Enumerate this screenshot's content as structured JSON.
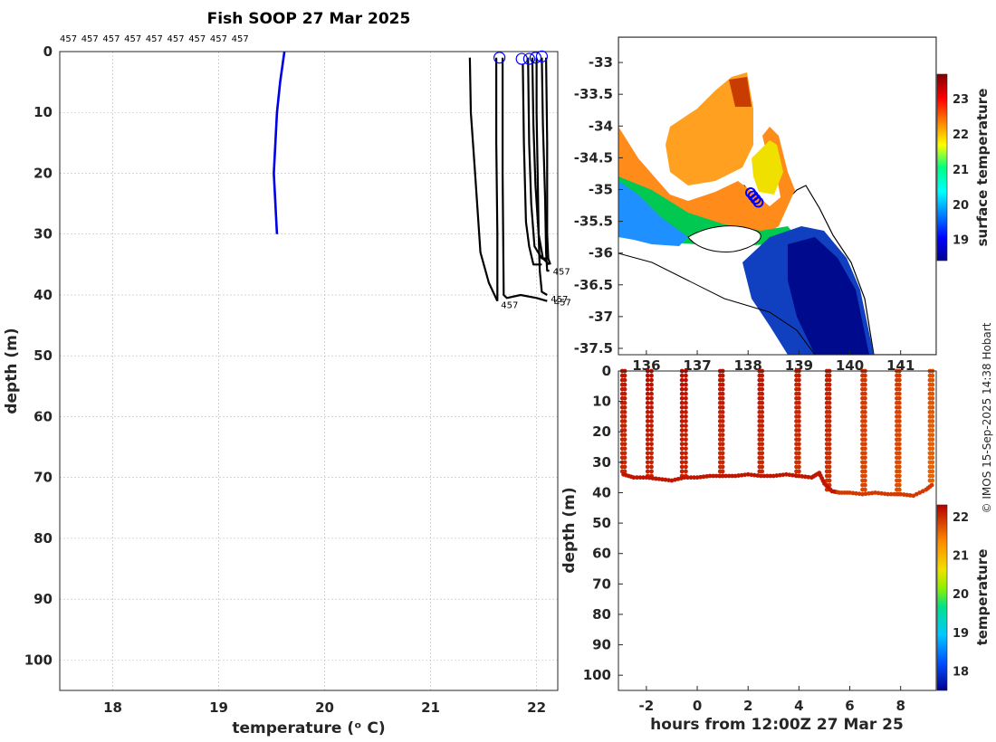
{
  "colors": {
    "text": "#262626",
    "mean_profile": "#0000e6",
    "cast_profiles": "#000000",
    "surface_markers": "#0000ff"
  },
  "chart_data": [
    {
      "type": "line",
      "title": "Fish SOOP 27 Mar 2025",
      "xlabel": "temperature (ᵒ C)",
      "ylabel": "depth (m)",
      "xlim": [
        17.5,
        22.2
      ],
      "ylim": [
        105,
        0
      ],
      "x_ticks": [
        "18",
        "19",
        "20",
        "21",
        "22"
      ],
      "y_ticks": [
        "0",
        "10",
        "20",
        "30",
        "40",
        "50",
        "60",
        "70",
        "80",
        "90",
        "100"
      ],
      "grid": true,
      "top_labels": [
        "457",
        "457",
        "457",
        "457",
        "457",
        "457",
        "457",
        "457",
        "457"
      ],
      "end_labels": [
        "457",
        "457",
        "457",
        "457"
      ],
      "series": [
        {
          "role": "climatology",
          "color": "#0000e6",
          "points": [
            [
              19.62,
              0
            ],
            [
              19.58,
              5
            ],
            [
              19.55,
              10
            ],
            [
              19.52,
              20
            ],
            [
              19.55,
              30
            ]
          ]
        },
        {
          "role": "cast",
          "points": [
            [
              21.37,
              1
            ],
            [
              21.38,
              10
            ],
            [
              21.42,
              20
            ],
            [
              21.47,
              33
            ],
            [
              21.55,
              38
            ],
            [
              21.63,
              41
            ]
          ]
        },
        {
          "role": "cast",
          "points": [
            [
              21.62,
              1
            ],
            [
              21.62,
              15
            ],
            [
              21.63,
              30
            ],
            [
              21.63,
              41
            ]
          ]
        },
        {
          "role": "cast",
          "points": [
            [
              21.68,
              1
            ],
            [
              21.68,
              20
            ],
            [
              21.69,
              40
            ],
            [
              21.72,
              40.5
            ],
            [
              21.85,
              40
            ],
            [
              22.0,
              40.5
            ],
            [
              22.1,
              41
            ]
          ]
        },
        {
          "role": "cast",
          "points": [
            [
              21.87,
              2
            ],
            [
              21.88,
              15
            ],
            [
              21.9,
              28
            ],
            [
              21.93,
              32
            ],
            [
              21.97,
              35
            ],
            [
              22.05,
              35
            ]
          ]
        },
        {
          "role": "cast",
          "points": [
            [
              21.92,
              1
            ],
            [
              21.93,
              15
            ],
            [
              21.95,
              25
            ],
            [
              21.98,
              32
            ],
            [
              22.05,
              34
            ],
            [
              22.1,
              34
            ]
          ]
        },
        {
          "role": "cast",
          "points": [
            [
              21.96,
              1
            ],
            [
              21.97,
              12
            ],
            [
              21.99,
              22
            ],
            [
              22.02,
              30
            ],
            [
              22.06,
              34
            ],
            [
              22.12,
              35
            ]
          ]
        },
        {
          "role": "cast",
          "points": [
            [
              22.0,
              1
            ],
            [
              22.0,
              10
            ],
            [
              22.01,
              20
            ],
            [
              22.02,
              30
            ],
            [
              22.03,
              36
            ],
            [
              22.05,
              39.5
            ],
            [
              22.1,
              40
            ]
          ]
        },
        {
          "role": "cast",
          "points": [
            [
              22.05,
              1
            ],
            [
              22.06,
              12
            ],
            [
              22.08,
              24
            ],
            [
              22.09,
              33
            ],
            [
              22.1,
              36
            ],
            [
              22.12,
              36
            ]
          ]
        },
        {
          "role": "cast",
          "points": [
            [
              22.09,
              1
            ],
            [
              22.1,
              15
            ],
            [
              22.1,
              25
            ],
            [
              22.1,
              30
            ],
            [
              22.11,
              34
            ],
            [
              22.13,
              35
            ]
          ]
        }
      ],
      "surface_markers": [
        [
          21.65,
          1
        ],
        [
          21.86,
          1.2
        ],
        [
          21.93,
          1.2
        ],
        [
          21.99,
          1
        ],
        [
          22.05,
          0.8
        ]
      ]
    },
    {
      "type": "heatmap",
      "name": "surface temperature map",
      "x_ticks": [
        "136",
        "137",
        "138",
        "139",
        "140",
        "141"
      ],
      "y_ticks": [
        "-33",
        "-33.5",
        "-34",
        "-34.5",
        "-35",
        "-35.5",
        "-36",
        "-36.5",
        "-37",
        "-37.5"
      ],
      "xlim": [
        135.45,
        141.7
      ],
      "ylim": [
        -37.6,
        -32.6
      ],
      "colorbar": {
        "label": "surface temperature",
        "ticks": [
          "19",
          "20",
          "21",
          "22",
          "23"
        ],
        "range": [
          18.4,
          23.7
        ]
      },
      "vessel_positions": [
        [
          138.05,
          -35.05
        ],
        [
          138.1,
          -35.1
        ],
        [
          138.15,
          -35.15
        ],
        [
          138.2,
          -35.2
        ]
      ]
    },
    {
      "type": "scatter",
      "name": "depth-time section",
      "xlabel": "hours from 12:00Z 27 Mar 25",
      "ylabel": "depth (m)",
      "xlim": [
        -3.1,
        9.4
      ],
      "ylim": [
        105,
        0
      ],
      "x_ticks": [
        "-2",
        "0",
        "2",
        "4",
        "6",
        "8"
      ],
      "y_ticks": [
        "0",
        "10",
        "20",
        "30",
        "40",
        "50",
        "60",
        "70",
        "80",
        "90",
        "100"
      ],
      "colorbar": {
        "label": "temperature",
        "ticks": [
          "18",
          "19",
          "20",
          "21",
          "22"
        ],
        "range": [
          17.5,
          22.3
        ]
      },
      "bottom_track": [
        [
          -2.9,
          34
        ],
        [
          -2.5,
          35
        ],
        [
          -2.0,
          35
        ],
        [
          -1.5,
          35.5
        ],
        [
          -1.0,
          36
        ],
        [
          -0.5,
          35
        ],
        [
          0.0,
          35
        ],
        [
          0.5,
          34.5
        ],
        [
          1.0,
          34.5
        ],
        [
          1.5,
          34.5
        ],
        [
          2.0,
          34
        ],
        [
          2.5,
          34.5
        ],
        [
          3.0,
          34.5
        ],
        [
          3.5,
          34
        ],
        [
          4.0,
          34.5
        ],
        [
          4.5,
          35
        ],
        [
          4.8,
          33.5
        ],
        [
          5.0,
          37
        ],
        [
          5.3,
          39.5
        ],
        [
          5.6,
          40
        ],
        [
          6.0,
          40
        ],
        [
          6.5,
          40.5
        ],
        [
          7.0,
          40
        ],
        [
          7.5,
          40.5
        ],
        [
          8.0,
          40.5
        ],
        [
          8.5,
          41
        ],
        [
          9.0,
          39
        ],
        [
          9.3,
          37
        ]
      ],
      "casts": [
        {
          "t0": -2.95,
          "t1": -2.85,
          "bottom": 34,
          "temperature": 22.15
        },
        {
          "t0": -1.95,
          "t1": -1.8,
          "bottom": 35.5,
          "temperature": 22.2
        },
        {
          "t0": -0.6,
          "t1": -0.45,
          "bottom": 35,
          "temperature": 22.2
        },
        {
          "t0": 0.9,
          "t1": 1.0,
          "bottom": 34.5,
          "temperature": 22.15
        },
        {
          "t0": 2.45,
          "t1": 2.55,
          "bottom": 34,
          "temperature": 22.15
        },
        {
          "t0": 3.9,
          "t1": 4.0,
          "bottom": 34.5,
          "temperature": 22.1
        },
        {
          "t0": 5.1,
          "t1": 5.2,
          "bottom": 39,
          "temperature": 22.1
        },
        {
          "t0": 6.5,
          "t1": 6.6,
          "bottom": 40,
          "temperature": 21.95
        },
        {
          "t0": 7.85,
          "t1": 7.95,
          "bottom": 40.5,
          "temperature": 21.9
        },
        {
          "t0": 9.15,
          "t1": 9.25,
          "bottom": 37,
          "temperature": 21.75
        }
      ]
    }
  ],
  "credit": "© IMOS 15-Sep-2025 14:38 Hobart"
}
